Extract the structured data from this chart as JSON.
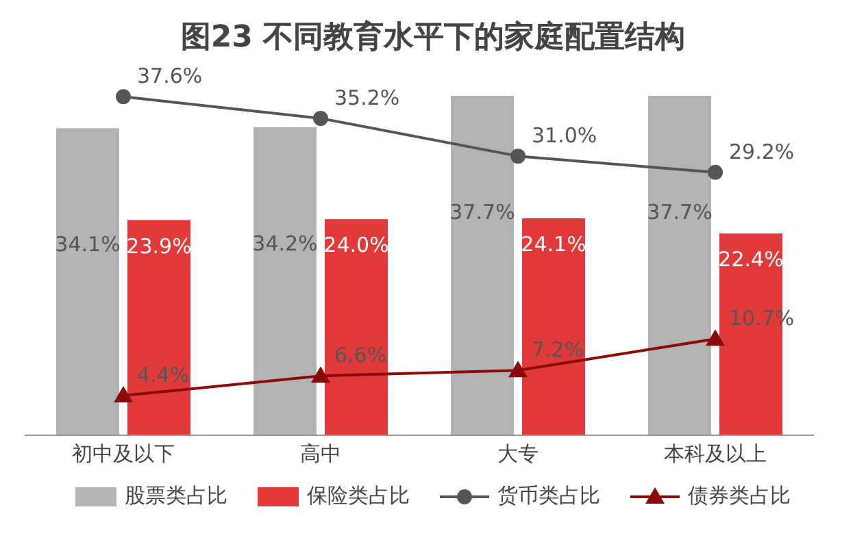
{
  "chart_data": {
    "type": "bar",
    "title": "图23 不同教育水平下的家庭配置结构",
    "categories": [
      "初中及以下",
      "高中",
      "大专",
      "本科及以上"
    ],
    "series": [
      {
        "name": "股票类占比",
        "color": "#b3b3b3",
        "values": [
          34.1,
          34.2,
          37.7,
          37.7
        ],
        "value_labels": [
          "34.1%",
          "34.2%",
          "37.7%",
          "37.7%"
        ]
      },
      {
        "name": "保险类占比",
        "color": "#e23a3a",
        "values": [
          23.9,
          24.0,
          24.1,
          22.4
        ],
        "value_labels": [
          "23.9%",
          "24.0%",
          "24.1%",
          "22.4%"
        ]
      },
      {
        "name": "货币类占比",
        "type": "line",
        "color": "#555555",
        "marker": "circle",
        "values": [
          37.6,
          35.2,
          31.0,
          29.2
        ],
        "value_labels": [
          "37.6%",
          "35.2%",
          "31.0%",
          "29.2%"
        ]
      },
      {
        "name": "债券类占比",
        "type": "line",
        "color": "#8b0a0a",
        "marker": "triangle",
        "values": [
          4.4,
          6.6,
          7.2,
          10.7
        ],
        "value_labels": [
          "4.4%",
          "6.6%",
          "7.2%",
          "10.7%"
        ]
      }
    ],
    "grid": false,
    "legend": "bottom"
  }
}
